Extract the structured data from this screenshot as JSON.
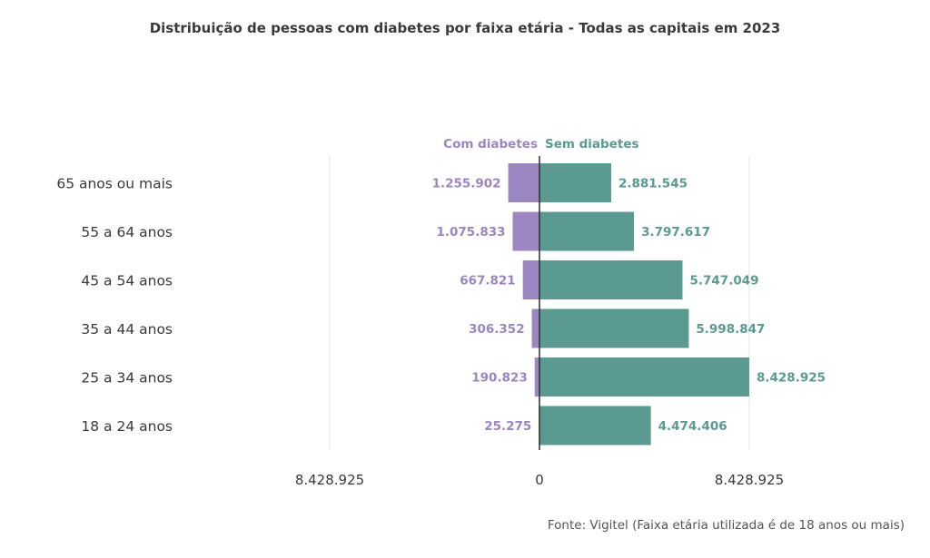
{
  "chart_data": {
    "type": "bar",
    "orientation": "horizontal-diverging",
    "title": "Distribuição de pessoas com diabetes por faixa etária - Todas as capitais em 2023",
    "categories": [
      "65 anos ou mais",
      "55 a 64 anos",
      "45 a 54 anos",
      "35 a 44 anos",
      "25 a 34 anos",
      "18 a 24 anos"
    ],
    "series": [
      {
        "name": "Com diabetes",
        "color": "#9c86c1",
        "values": [
          1255902,
          1075833,
          667821,
          306352,
          190823,
          25275
        ],
        "value_labels": [
          "1.255.902",
          "1.075.833",
          "667.821",
          "306.352",
          "190.823",
          "25.275"
        ]
      },
      {
        "name": "Sem diabetes",
        "color": "#5a9a91",
        "values": [
          2881545,
          3797617,
          5747049,
          5998847,
          8428925,
          4474406
        ],
        "value_labels": [
          "2.881.545",
          "3.797.617",
          "5.747.049",
          "5.998.847",
          "8.428.925",
          "4.474.406"
        ]
      }
    ],
    "xlim": [
      -8428925,
      8428925
    ],
    "x_ticks": [
      {
        "value": -8428925,
        "label": "8.428.925"
      },
      {
        "value": 0,
        "label": "0"
      },
      {
        "value": 8428925,
        "label": "8.428.925"
      }
    ],
    "grid": true,
    "legend_position": "top-center",
    "source": "Fonte: Vigitel (Faixa etária utilizada é de 18 anos ou mais)"
  }
}
